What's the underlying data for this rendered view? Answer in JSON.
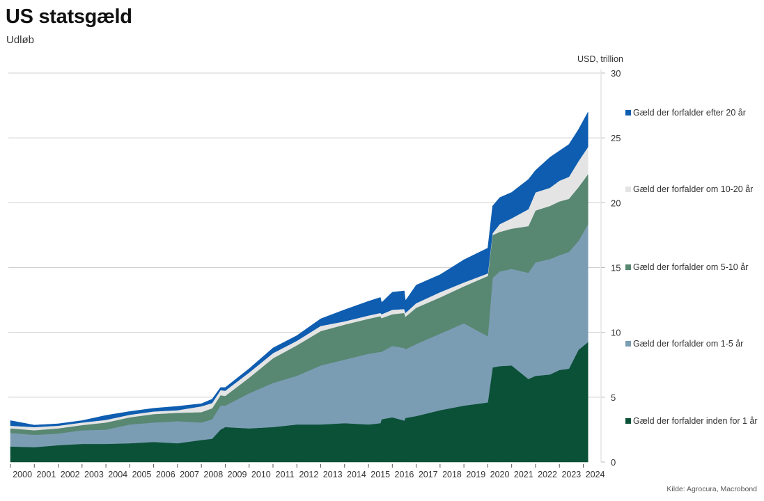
{
  "title": "US statsgæld",
  "subtitle": "Udløb",
  "source": "Kilde: Agrocura, Macrobond",
  "chart_data": {
    "type": "area",
    "stacked": true,
    "title": "US statsgæld",
    "subtitle": "Udløb",
    "ylabel": "USD, trillion",
    "xlabel": "",
    "ylim": [
      0,
      30
    ],
    "yticks": [
      0,
      5,
      10,
      15,
      20,
      25,
      30
    ],
    "xlim": [
      2000.0,
      2024.2
    ],
    "xtick_labels": [
      "2000",
      "2001",
      "2002",
      "2003",
      "2004",
      "2005",
      "2006",
      "2007",
      "2008",
      "2009",
      "2010",
      "2011",
      "2012",
      "2013",
      "2014",
      "2015",
      "2016",
      "2017",
      "2018",
      "2019",
      "2020",
      "2021",
      "2022",
      "2023",
      "2024"
    ],
    "grid": "horizontal",
    "y_axis_side": "right",
    "legend_position": "right",
    "x": [
      2000.0,
      2001.0,
      2002.0,
      2003.0,
      2004.0,
      2005.0,
      2006.0,
      2007.0,
      2008.0,
      2008.45,
      2008.8,
      2009.0,
      2010.0,
      2011.0,
      2012.0,
      2013.0,
      2014.0,
      2015.0,
      2015.5,
      2015.55,
      2016.0,
      2016.5,
      2016.55,
      2017.0,
      2018.0,
      2019.0,
      2020.0,
      2020.2,
      2020.5,
      2021.0,
      2021.7,
      2022.0,
      2022.6,
      2023.0,
      2023.4,
      2023.8,
      2024.2
    ],
    "series": [
      {
        "name": "Gæld der forfalder inden for 1 år",
        "color": "#0b5138",
        "values": [
          1.2,
          1.15,
          1.3,
          1.4,
          1.4,
          1.45,
          1.55,
          1.45,
          1.7,
          1.8,
          2.5,
          2.7,
          2.6,
          2.7,
          2.9,
          2.9,
          3.0,
          2.9,
          3.0,
          3.3,
          3.45,
          3.2,
          3.4,
          3.55,
          4.0,
          4.35,
          4.6,
          7.3,
          7.4,
          7.45,
          6.4,
          6.65,
          6.75,
          7.1,
          7.2,
          8.65,
          9.25
        ]
      },
      {
        "name": "Gæld der forfalder om 1-5 år",
        "color": "#7b9db4",
        "values": [
          1.05,
          0.95,
          0.9,
          1.05,
          1.1,
          1.45,
          1.5,
          1.7,
          1.35,
          1.5,
          1.85,
          1.65,
          2.7,
          3.4,
          3.75,
          4.55,
          4.9,
          5.45,
          5.5,
          5.2,
          5.5,
          5.6,
          5.3,
          5.55,
          5.9,
          6.35,
          5.1,
          6.9,
          7.3,
          7.45,
          8.2,
          8.75,
          8.9,
          8.85,
          9.0,
          8.4,
          9.1
        ]
      },
      {
        "name": "Gæld der forfalder om 5-10 år",
        "color": "#588772",
        "values": [
          0.35,
          0.35,
          0.4,
          0.4,
          0.55,
          0.55,
          0.65,
          0.65,
          0.8,
          0.85,
          0.8,
          0.75,
          1.2,
          1.9,
          2.35,
          2.65,
          2.7,
          2.7,
          2.75,
          2.6,
          2.45,
          2.7,
          2.5,
          2.8,
          2.8,
          2.85,
          4.65,
          3.3,
          3.05,
          3.1,
          3.6,
          4.0,
          4.1,
          4.15,
          4.1,
          4.15,
          3.85
        ]
      },
      {
        "name": "Gæld der forfalder om 10-20 år",
        "color": "#e4e4e4",
        "values": [
          0.2,
          0.25,
          0.2,
          0.2,
          0.2,
          0.2,
          0.2,
          0.2,
          0.45,
          0.4,
          0.4,
          0.4,
          0.4,
          0.4,
          0.35,
          0.4,
          0.25,
          0.25,
          0.25,
          0.3,
          0.35,
          0.3,
          0.3,
          0.35,
          0.4,
          0.3,
          0.2,
          0.15,
          0.6,
          0.8,
          1.3,
          1.4,
          1.4,
          1.6,
          1.7,
          2.0,
          2.1
        ]
      },
      {
        "name": "Gæld der forfalder efter 20 år",
        "color": "#0e5db0",
        "values": [
          0.4,
          0.15,
          0.15,
          0.15,
          0.35,
          0.25,
          0.25,
          0.3,
          0.2,
          0.3,
          0.2,
          0.25,
          0.3,
          0.4,
          0.4,
          0.55,
          0.9,
          1.1,
          1.2,
          0.9,
          1.35,
          1.4,
          0.95,
          1.4,
          1.35,
          1.75,
          1.95,
          2.1,
          2.05,
          2.0,
          2.3,
          1.7,
          2.35,
          2.3,
          2.5,
          2.45,
          2.7
        ]
      }
    ],
    "legend_order": [
      "Gæld der forfalder efter 20 år",
      "Gæld der forfalder om 10-20 år",
      "Gæld der forfalder om 5-10 år",
      "Gæld der forfalder om 1-5 år",
      "Gæld der forfalder inden for 1 år"
    ]
  }
}
